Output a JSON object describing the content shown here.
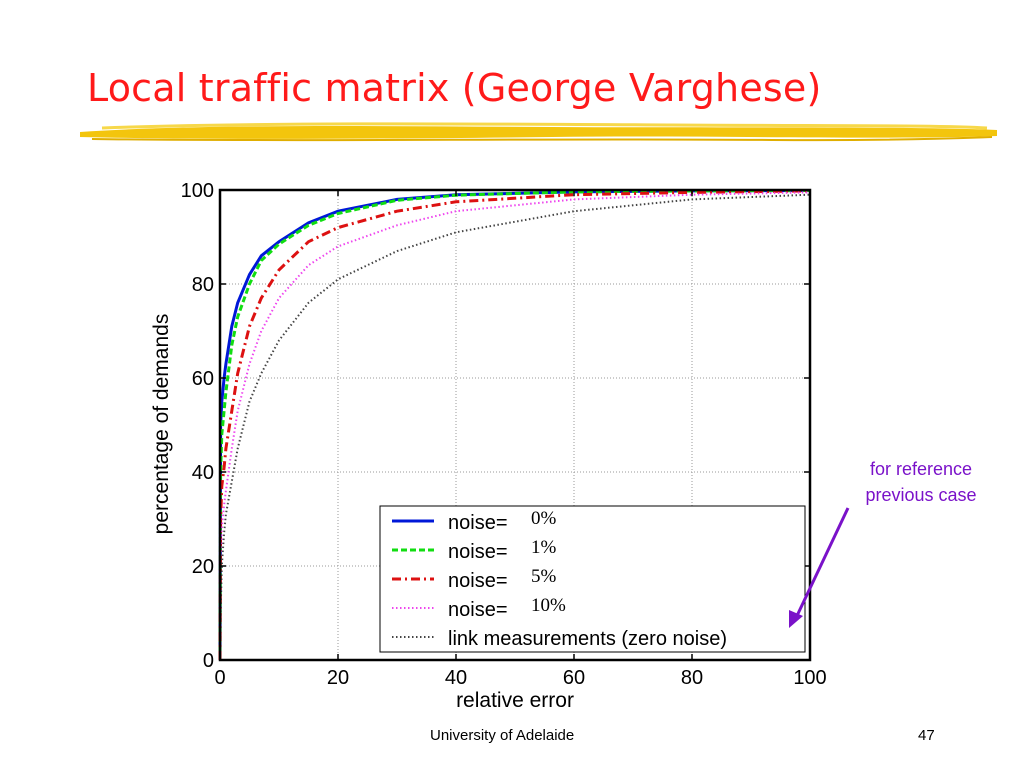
{
  "slide": {
    "title": "Local traffic matrix (George Varghese)",
    "footer": "University of Adelaide",
    "page_number": "47",
    "annotation": [
      "for reference",
      "previous case"
    ]
  },
  "colors": {
    "title": "#ff1a1a",
    "annotation": "#7a12c9",
    "underline": "#f2c200"
  },
  "chart_data": {
    "type": "line",
    "title": "",
    "xlabel": "relative error",
    "ylabel": "percentage of demands",
    "xlim": [
      0,
      100
    ],
    "ylim": [
      0,
      100
    ],
    "xticks": [
      "0",
      "20",
      "40",
      "60",
      "80",
      "100"
    ],
    "yticks": [
      "0",
      "20",
      "40",
      "60",
      "80",
      "100"
    ],
    "grid": true,
    "legend_position": "bottom-right",
    "series": [
      {
        "legend_text": "noise=",
        "legend_value": "0%",
        "color": "#0018d8",
        "style": "solid",
        "x": [
          0,
          0.1,
          0.3,
          0.7,
          1,
          2,
          3,
          5,
          7,
          10,
          15,
          20,
          30,
          40,
          60,
          80,
          100
        ],
        "y": [
          0,
          50,
          55,
          60,
          63,
          71,
          76,
          82,
          86,
          89,
          93,
          95.5,
          98,
          99,
          99.6,
          99.8,
          99.9
        ]
      },
      {
        "legend_text": "noise=",
        "legend_value": "1%",
        "color": "#11dd11",
        "style": "dashed",
        "x": [
          0,
          0.1,
          0.3,
          0.7,
          1,
          2,
          3,
          5,
          7,
          10,
          15,
          20,
          30,
          40,
          60,
          80,
          100
        ],
        "y": [
          0,
          40,
          48,
          53,
          57,
          67,
          73,
          80,
          85,
          88.5,
          92.5,
          95,
          97.8,
          98.9,
          99.6,
          99.8,
          99.9
        ]
      },
      {
        "legend_text": "noise=",
        "legend_value": "5%",
        "color": "#dd1111",
        "style": "dashdot",
        "x": [
          0,
          0.1,
          0.3,
          0.7,
          1,
          2,
          3,
          5,
          7,
          10,
          15,
          20,
          30,
          40,
          60,
          80,
          100
        ],
        "y": [
          0,
          30,
          37,
          41,
          45,
          53,
          61,
          71,
          77,
          83,
          89,
          92,
          95.5,
          97.5,
          99,
          99.5,
          99.8
        ]
      },
      {
        "legend_text": "noise=",
        "legend_value": "10%",
        "color": "#ee44ee",
        "style": "dotted",
        "x": [
          0,
          0.1,
          0.3,
          0.7,
          1,
          2,
          3,
          5,
          7,
          10,
          15,
          20,
          30,
          40,
          60,
          80,
          100
        ],
        "y": [
          0,
          20,
          28,
          33,
          36,
          45,
          53,
          63,
          70,
          77,
          84,
          88,
          92.5,
          95.5,
          98,
          99,
          99.5
        ]
      },
      {
        "legend_text": "link measurements (zero noise)",
        "legend_value": "",
        "color": "#444444",
        "style": "dotted",
        "x": [
          0,
          0.1,
          0.3,
          0.7,
          1,
          2,
          3,
          5,
          7,
          10,
          15,
          20,
          30,
          40,
          60,
          80,
          100
        ],
        "y": [
          0,
          10,
          20,
          27,
          31,
          38,
          45,
          55,
          61,
          68,
          76,
          81,
          87,
          91,
          95.5,
          98,
          99
        ]
      }
    ]
  }
}
